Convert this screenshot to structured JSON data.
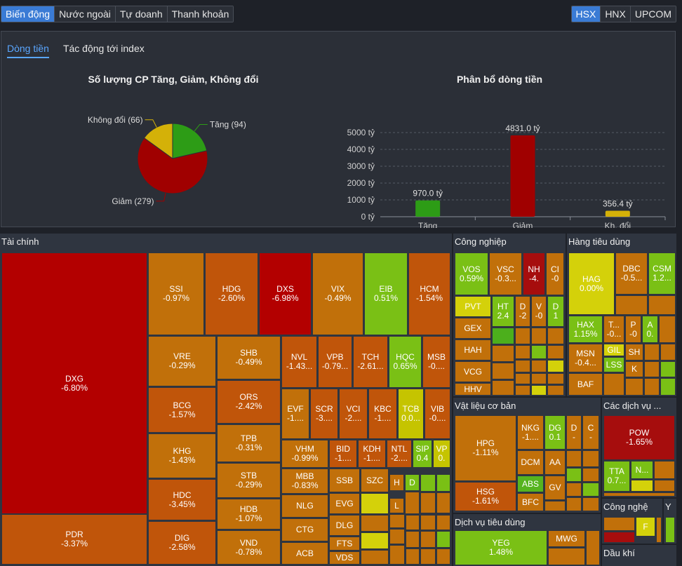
{
  "tabs": {
    "t1": "Biến động",
    "t2": "Nước ngoài",
    "t3": "Tự doanh",
    "t4": "Thanh khoản"
  },
  "exchanges": {
    "e1": "HSX",
    "e2": "HNX",
    "e3": "UPCOM"
  },
  "subtabs": {
    "flow": "Dòng tiền",
    "impact": "Tác động tới index"
  },
  "pie": {
    "title": "Số lượng CP Tăng, Giảm, Không đổi",
    "up_label": "Tăng (94)",
    "down_label": "Giảm (279)",
    "flat_label": "Không đổi (66)"
  },
  "chart_data": {
    "pie": {
      "type": "pie",
      "title": "Số lượng CP Tăng, Giảm, Không đổi",
      "categories": [
        "Tăng",
        "Giảm",
        "Không đổi"
      ],
      "values": [
        94,
        279,
        66
      ],
      "colors": [
        "#2d9c16",
        "#a00000",
        "#d4b108"
      ]
    },
    "bar": {
      "type": "bar",
      "title": "Phân bổ dòng tiền",
      "categories": [
        "Tăng",
        "Giảm",
        "Kh. đổi"
      ],
      "values": [
        970.0,
        4831.0,
        356.4
      ],
      "value_labels": [
        "970.0 tỷ",
        "4831.0 tỷ",
        "356.4 tỷ"
      ],
      "yticks": [
        "5000 tỷ",
        "4000 tỷ",
        "3000 tỷ",
        "2000 tỷ",
        "1000 tỷ",
        "0 tỷ"
      ],
      "ylim": [
        0,
        5000
      ],
      "colors": [
        "#2d9c16",
        "#a00000",
        "#d4b108"
      ]
    }
  },
  "sectors": {
    "s1": "Tài chính",
    "s2": "Công nghiệp",
    "s3": "Hàng tiêu dùng",
    "s4": "Vật liệu cơ bản",
    "s5": "Các dịch vụ ...",
    "s6": "Dịch vụ tiêu dùng",
    "s7": "Công nghệ",
    "s8": "Y",
    "s9": "Dầu khí"
  },
  "stocks": {
    "DXG": [
      "DXG",
      "-6.80%"
    ],
    "PDR": [
      "PDR",
      "-3.37%"
    ],
    "SSI": [
      "SSI",
      "-0.97%"
    ],
    "HDG": [
      "HDG",
      "-2.60%"
    ],
    "DXS": [
      "DXS",
      "-6.98%"
    ],
    "VIX": [
      "VIX",
      "-0.49%"
    ],
    "EIB": [
      "EIB",
      "0.51%"
    ],
    "HCM": [
      "HCM",
      "-1.54%"
    ],
    "VRE": [
      "VRE",
      "-0.29%"
    ],
    "SHB": [
      "SHB",
      "-0.49%"
    ],
    "NVL": [
      "NVL",
      "-1.43..."
    ],
    "VPB": [
      "VPB",
      "-0.79..."
    ],
    "TCH": [
      "TCH",
      "-2.61..."
    ],
    "HQC": [
      "HQC",
      "0.65%"
    ],
    "MSB": [
      "MSB",
      "-0...."
    ],
    "BCG": [
      "BCG",
      "-1.57%"
    ],
    "ORS": [
      "ORS",
      "-2.42%"
    ],
    "EVF": [
      "EVF",
      "-1...."
    ],
    "SCR": [
      "SCR",
      "-3...."
    ],
    "VCI": [
      "VCI",
      "-2...."
    ],
    "KBC": [
      "KBC",
      "-1...."
    ],
    "TCB": [
      "TCB",
      "0.0..."
    ],
    "VIB": [
      "VIB",
      "-0...."
    ],
    "KHG": [
      "KHG",
      "-1.43%"
    ],
    "TPB": [
      "TPB",
      "-0.31%"
    ],
    "VHM": [
      "VHM",
      "-0.99%"
    ],
    "BID": [
      "BID",
      "-1...."
    ],
    "KDH": [
      "KDH",
      "-1...."
    ],
    "NTL": [
      "NTL",
      "-2...."
    ],
    "SIP": [
      "SIP",
      "0.4"
    ],
    "VP": [
      "VP",
      "0."
    ],
    "STB": [
      "STB",
      "-0.29%"
    ],
    "MBB": [
      "MBB",
      "-0.83%"
    ],
    "SSB": [
      "SSB",
      ""
    ],
    "SZC": [
      "SZC",
      ""
    ],
    "H": [
      "H",
      ""
    ],
    "D": [
      "D",
      ""
    ],
    "HDC": [
      "HDC",
      "-3.45%"
    ],
    "HDB": [
      "HDB",
      "-1.07%"
    ],
    "NLG": [
      "NLG",
      ""
    ],
    "EVG": [
      "EVG",
      ""
    ],
    "L": [
      "L",
      ""
    ],
    "DLG": [
      "DLG",
      ""
    ],
    "CTG": [
      "CTG",
      ""
    ],
    "FTS": [
      "FTS",
      ""
    ],
    "DIG": [
      "DIG",
      "-2.58%"
    ],
    "VND": [
      "VND",
      "-0.78%"
    ],
    "ACB": [
      "ACB",
      ""
    ],
    "VDS": [
      "VDS",
      ""
    ],
    "VOS": [
      "VOS",
      "0.59%"
    ],
    "VSC": [
      "VSC",
      "-0.3..."
    ],
    "NH": [
      "NH",
      "-4."
    ],
    "CI": [
      "CI",
      "-0"
    ],
    "PVT": [
      "PVT",
      ""
    ],
    "HT": [
      "HT",
      "2.4"
    ],
    "D2": [
      "D",
      "-2"
    ],
    "V": [
      "V",
      "-0"
    ],
    "D3": [
      "D",
      "1"
    ],
    "GEX": [
      "GEX",
      ""
    ],
    "HAH": [
      "HAH",
      ""
    ],
    "VCG": [
      "VCG",
      ""
    ],
    "HHV": [
      "HHV",
      ""
    ],
    "HAG": [
      "HAG",
      "0.00%"
    ],
    "DBC": [
      "DBC",
      "-0.5..."
    ],
    "CSM": [
      "CSM",
      "1.2..."
    ],
    "HAX": [
      "HAX",
      "1.15%"
    ],
    "T": [
      "T...",
      "-0..."
    ],
    "P": [
      "P",
      "-0"
    ],
    "A": [
      "A",
      "0."
    ],
    "MSN": [
      "MSN",
      "-0.4..."
    ],
    "GIL": [
      "GIL",
      ""
    ],
    "SH": [
      "SH",
      ""
    ],
    "LSS": [
      "LSS",
      ""
    ],
    "K": [
      "K",
      ""
    ],
    "BAF": [
      "BAF",
      ""
    ],
    "HPG": [
      "HPG",
      "-1.11%"
    ],
    "NKG": [
      "NKG",
      "-1...."
    ],
    "DG": [
      "DG",
      "0.1"
    ],
    "D4": [
      "D",
      "-"
    ],
    "C": [
      "C",
      "-"
    ],
    "DCM": [
      "DCM",
      ""
    ],
    "AA": [
      "AA",
      ""
    ],
    "ABS": [
      "ABS",
      ""
    ],
    "GV": [
      "GV",
      ""
    ],
    "BFC": [
      "BFC",
      ""
    ],
    "HSG": [
      "HSG",
      "-1.61%"
    ],
    "POW": [
      "POW",
      "-1.65%"
    ],
    "TTA": [
      "TTA",
      "0.7..."
    ],
    "N": [
      "N...",
      ""
    ],
    "F": [
      "F",
      ""
    ],
    "YEG": [
      "YEG",
      "1.48%"
    ],
    "MWG": [
      "MWG",
      ""
    ]
  }
}
